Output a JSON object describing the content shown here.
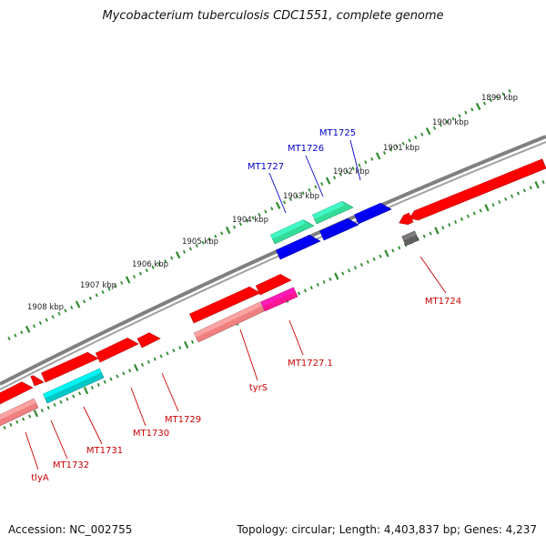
{
  "title": "Mycobacterium tuberculosis CDC1551, complete genome",
  "footer": {
    "accession": "Accession: NC_002755",
    "summary": "Topology: circular; Length: 4,403,837 bp; Genes: 4,237"
  },
  "colors": {
    "backbone": "#808080",
    "tick": "#2e8b2e",
    "red": "#ff0000",
    "pink": "#f08080",
    "magenta": "#ff1493",
    "blue": "#0000ee",
    "green": "#33dd99",
    "cyan": "#00c8c8",
    "gray": "#606060",
    "label_red": "#cc0000",
    "label_blue": "#0000cc"
  },
  "kbp_ticks": [
    {
      "label": "1908 kbp"
    },
    {
      "label": "1907 kbp"
    },
    {
      "label": "1906 kbp"
    },
    {
      "label": "1905 kbp"
    },
    {
      "label": "1904 kbp"
    },
    {
      "label": "1903 kbp"
    },
    {
      "label": "1902 kbp"
    },
    {
      "label": "1901 kbp"
    },
    {
      "label": "1900 kbp"
    },
    {
      "label": "1899 kbp"
    }
  ],
  "gene_labels": [
    {
      "name": "MT1727",
      "color": "blue"
    },
    {
      "name": "MT1726",
      "color": "blue"
    },
    {
      "name": "MT1725",
      "color": "blue"
    },
    {
      "name": "MT1724",
      "color": "red"
    },
    {
      "name": "MT1727.1",
      "color": "red"
    },
    {
      "name": "tyrS",
      "color": "red"
    },
    {
      "name": "MT1729",
      "color": "red"
    },
    {
      "name": "MT1730",
      "color": "red"
    },
    {
      "name": "MT1731",
      "color": "red"
    },
    {
      "name": "MT1732",
      "color": "red"
    },
    {
      "name": "tlyA",
      "color": "red"
    }
  ]
}
